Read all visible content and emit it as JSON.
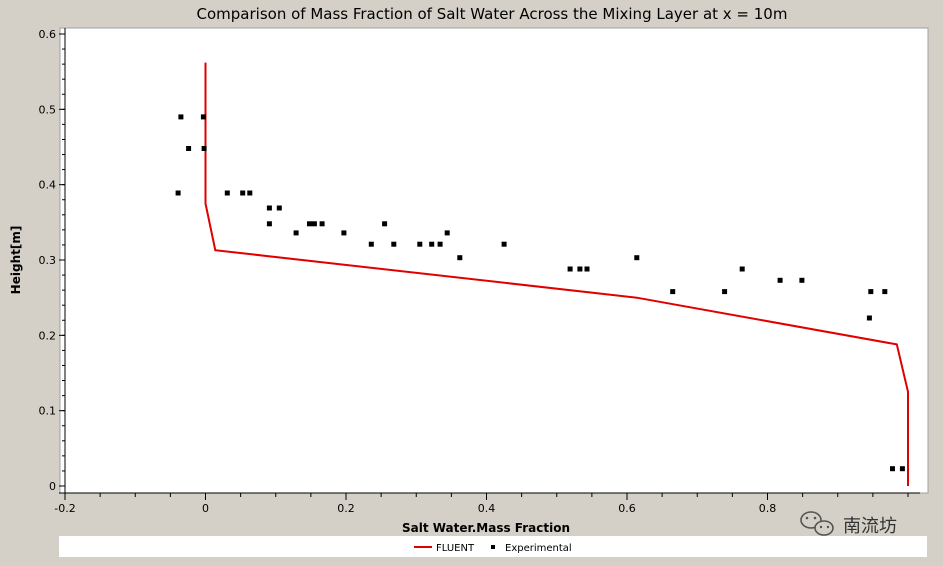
{
  "chart_data": {
    "type": "line",
    "title": "Comparison of Mass Fraction of Salt Water Across the Mixing Layer at x = 10m",
    "xlabel": "Salt Water.Mass Fraction",
    "ylabel": "Height[m]",
    "xlim": [
      -0.2,
      1.0
    ],
    "ylim": [
      0,
      0.6
    ],
    "xticks": [
      -0.2,
      0,
      0.2,
      0.4,
      0.6,
      0.8
    ],
    "yticks": [
      0,
      0.1,
      0.2,
      0.3,
      0.4,
      0.5,
      0.6
    ],
    "grid": false,
    "legend": "bottom",
    "series": [
      {
        "name": "FLUENT",
        "kind": "line",
        "color": "#e00000",
        "points": [
          [
            0.0,
            0.562
          ],
          [
            0.0,
            0.375
          ],
          [
            0.014,
            0.313
          ],
          [
            0.614,
            0.25
          ],
          [
            0.984,
            0.188
          ],
          [
            1.0,
            0.125
          ],
          [
            1.0,
            0.0
          ]
        ]
      },
      {
        "name": "Experimental",
        "kind": "scatter",
        "color": "#000000",
        "points": [
          [
            -0.039,
            0.389
          ],
          [
            -0.035,
            0.49
          ],
          [
            -0.024,
            0.448
          ],
          [
            -0.003,
            0.49
          ],
          [
            -0.002,
            0.448
          ],
          [
            0.031,
            0.389
          ],
          [
            0.053,
            0.389
          ],
          [
            0.063,
            0.389
          ],
          [
            0.091,
            0.369
          ],
          [
            0.091,
            0.348
          ],
          [
            0.105,
            0.369
          ],
          [
            0.129,
            0.336
          ],
          [
            0.148,
            0.348
          ],
          [
            0.155,
            0.348
          ],
          [
            0.166,
            0.348
          ],
          [
            0.197,
            0.336
          ],
          [
            0.236,
            0.321
          ],
          [
            0.255,
            0.348
          ],
          [
            0.268,
            0.321
          ],
          [
            0.305,
            0.321
          ],
          [
            0.322,
            0.321
          ],
          [
            0.334,
            0.321
          ],
          [
            0.344,
            0.336
          ],
          [
            0.362,
            0.303
          ],
          [
            0.425,
            0.321
          ],
          [
            0.519,
            0.288
          ],
          [
            0.533,
            0.288
          ],
          [
            0.543,
            0.288
          ],
          [
            0.614,
            0.303
          ],
          [
            0.665,
            0.258
          ],
          [
            0.739,
            0.258
          ],
          [
            0.764,
            0.288
          ],
          [
            0.818,
            0.273
          ],
          [
            0.849,
            0.273
          ],
          [
            0.947,
            0.258
          ],
          [
            0.967,
            0.258
          ],
          [
            0.945,
            0.223
          ],
          [
            0.978,
            0.023
          ],
          [
            0.992,
            0.023
          ]
        ]
      }
    ]
  },
  "watermark": {
    "text": "南流坊",
    "icon": "wechat-icon"
  }
}
